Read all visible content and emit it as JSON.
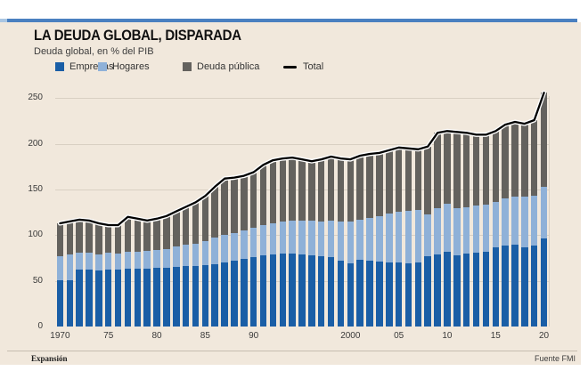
{
  "header": {
    "title": "LA DEUDA GLOBAL, DISPARADA",
    "subtitle": "Deuda global, en % del PIB"
  },
  "footer": {
    "brand": "Expansión",
    "source": "Fuente FMI"
  },
  "colors": {
    "background": "#f1e8dc",
    "accent_bar": "#4a80c0",
    "accent_bar_left_cap": "#aac6e2",
    "gridline": "#d9d0c3",
    "empresas": "#1a5ea6",
    "hogares": "#8fb1d8",
    "deuda_publica": "#64625e",
    "total_line": "#000000",
    "line_halo": "#ffffff"
  },
  "chart_data": {
    "type": "bar",
    "subtype": "stacked-bars-with-total-line",
    "title": "LA DEUDA GLOBAL, DISPARADA",
    "subtitle": "Deuda global, en % del PIB",
    "xlabel": "",
    "ylabel": "% del PIB",
    "ylim": [
      0,
      262
    ],
    "yticks": [
      0,
      50,
      100,
      150,
      200,
      250
    ],
    "grid": "horizontal",
    "legend_position": "top",
    "x": [
      1970,
      1971,
      1972,
      1973,
      1974,
      1975,
      1976,
      1977,
      1978,
      1979,
      1980,
      1981,
      1982,
      1983,
      1984,
      1985,
      1986,
      1987,
      1988,
      1989,
      1990,
      1991,
      1992,
      1993,
      1994,
      1995,
      1996,
      1997,
      1998,
      1999,
      2000,
      2001,
      2002,
      2003,
      2004,
      2005,
      2006,
      2007,
      2008,
      2009,
      2010,
      2011,
      2012,
      2013,
      2014,
      2015,
      2016,
      2017,
      2018,
      2019,
      2020
    ],
    "xtick_labels": [
      {
        "year": 1970,
        "label": "1970"
      },
      {
        "year": 1975,
        "label": "75"
      },
      {
        "year": 1980,
        "label": "80"
      },
      {
        "year": 1985,
        "label": "85"
      },
      {
        "year": 1990,
        "label": "90"
      },
      {
        "year": 2000,
        "label": "2000"
      },
      {
        "year": 2005,
        "label": "05"
      },
      {
        "year": 2010,
        "label": "10"
      },
      {
        "year": 2015,
        "label": "15"
      },
      {
        "year": 2020,
        "label": "20"
      }
    ],
    "series": [
      {
        "name": "Empresas",
        "color": "#1a5ea6",
        "values": [
          51,
          51,
          62,
          62,
          61,
          62,
          62,
          63,
          63,
          63,
          64,
          64,
          65,
          66,
          66,
          67,
          68,
          70,
          72,
          74,
          76,
          78,
          79,
          80,
          80,
          79,
          78,
          77,
          76,
          72,
          69,
          73,
          72,
          71,
          70,
          70,
          69,
          70,
          77,
          79,
          82,
          78,
          80,
          81,
          82,
          87,
          89,
          90,
          87,
          89,
          96
        ]
      },
      {
        "name": "Hogares",
        "color": "#8fb1d8",
        "values": [
          26,
          28,
          19,
          19,
          18,
          19,
          18,
          19,
          19,
          20,
          20,
          21,
          23,
          24,
          25,
          27,
          29,
          30,
          30,
          31,
          32,
          33,
          34,
          35,
          36,
          37,
          38,
          38,
          40,
          43,
          46,
          44,
          47,
          50,
          54,
          56,
          58,
          58,
          46,
          51,
          52,
          52,
          51,
          51,
          51,
          49,
          51,
          52,
          55,
          54,
          57
        ]
      },
      {
        "name": "Deuda pública",
        "color": "#64625e",
        "values": [
          36,
          36,
          36,
          35,
          34,
          30,
          31,
          38,
          36,
          33,
          34,
          36,
          38,
          41,
          45,
          49,
          56,
          62,
          61,
          60,
          61,
          66,
          69,
          69,
          69,
          67,
          65,
          68,
          70,
          69,
          68,
          70,
          70,
          69,
          69,
          70,
          68,
          66,
          74,
          82,
          80,
          83,
          81,
          78,
          77,
          78,
          81,
          82,
          80,
          83,
          103
        ]
      }
    ],
    "line_series": {
      "name": "Total",
      "color": "#000000",
      "values": [
        113,
        115,
        117,
        116,
        113,
        111,
        111,
        120,
        118,
        116,
        118,
        121,
        126,
        131,
        136,
        143,
        153,
        162,
        163,
        165,
        169,
        177,
        182,
        184,
        185,
        183,
        181,
        183,
        186,
        184,
        183,
        187,
        189,
        190,
        193,
        196,
        195,
        194,
        197,
        212,
        214,
        213,
        212,
        210,
        210,
        214,
        221,
        224,
        222,
        226,
        256
      ]
    }
  }
}
